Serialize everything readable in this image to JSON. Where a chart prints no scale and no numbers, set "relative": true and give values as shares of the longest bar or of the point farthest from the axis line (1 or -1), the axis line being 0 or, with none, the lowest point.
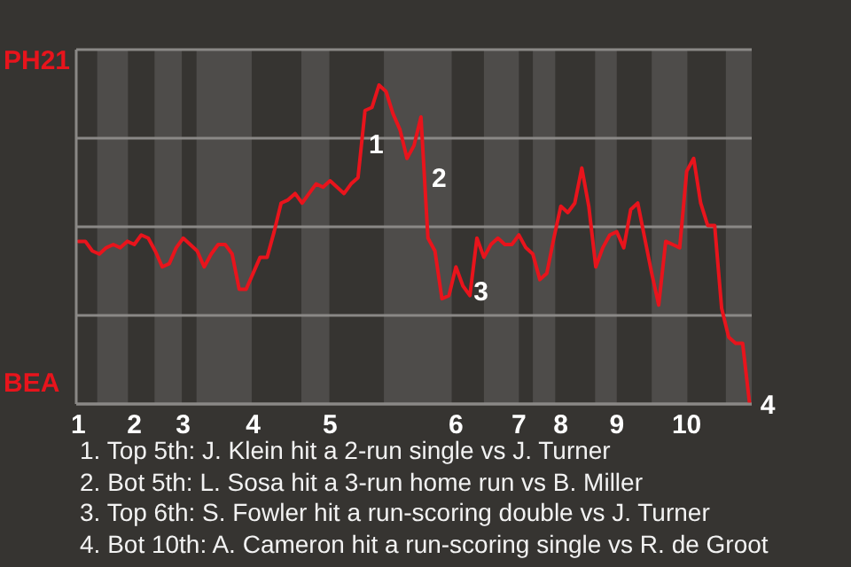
{
  "chart_data": {
    "type": "line",
    "relative": true,
    "categories": [
      "1",
      null,
      null,
      null,
      null,
      null,
      null,
      null,
      "2",
      null,
      null,
      null,
      null,
      null,
      null,
      "3",
      null,
      null,
      null,
      null,
      null,
      null,
      null,
      null,
      null,
      "4",
      null,
      null,
      null,
      null,
      null,
      null,
      null,
      null,
      null,
      null,
      "5",
      null,
      null,
      null,
      null,
      null,
      null,
      null,
      null,
      null,
      null,
      null,
      null,
      null,
      null,
      null,
      null,
      null,
      "6",
      null,
      null,
      null,
      null,
      null,
      null,
      null,
      null,
      "7",
      null,
      null,
      null,
      null,
      null,
      "8",
      null,
      null,
      null,
      null,
      null,
      null,
      null,
      "9",
      null,
      null,
      null,
      null,
      null,
      null,
      null,
      null,
      null,
      "10",
      null,
      null,
      null,
      null,
      null,
      null,
      null,
      null,
      null
    ],
    "series": [
      {
        "color": "#e8141c",
        "values": [
          0.51,
          0.51,
          0.48,
          0.47,
          0.49,
          0.5,
          0.49,
          0.51,
          0.5,
          0.53,
          0.52,
          0.48,
          0.43,
          0.44,
          0.49,
          0.52,
          0.5,
          0.48,
          0.43,
          0.47,
          0.5,
          0.5,
          0.47,
          0.36,
          0.36,
          0.41,
          0.46,
          0.46,
          0.54,
          0.63,
          0.64,
          0.66,
          0.63,
          0.66,
          0.69,
          0.68,
          0.7,
          0.68,
          0.66,
          0.69,
          0.71,
          0.92,
          0.93,
          1,
          0.98,
          0.91,
          0.86,
          0.77,
          0.81,
          0.9,
          0.52,
          0.48,
          0.33,
          0.34,
          0.43,
          0.37,
          0.34,
          0.52,
          0.46,
          0.5,
          0.52,
          0.5,
          0.5,
          0.53,
          0.49,
          0.47,
          0.39,
          0.41,
          0.52,
          0.62,
          0.6,
          0.63,
          0.74,
          0.62,
          0.43,
          0.49,
          0.53,
          0.54,
          0.49,
          0.61,
          0.63,
          0.52,
          0.41,
          0.31,
          0.51,
          0.5,
          0.49,
          0.73,
          0.77,
          0.63,
          0.56,
          0.56,
          0.3,
          0.21,
          0.19,
          0.19,
          0
        ]
      }
    ],
    "grid": "y",
    "annotations": [
      "PH21",
      "BEA",
      "1",
      "2",
      "3",
      "4",
      "1. Top 5th: J. Klein hit a 2-run single vs J. Turner",
      "2. Bot 5th: L. Sosa hit a 3-run home run vs B. Miller",
      "3. Top 6th: S. Fowler hit a run-scoring double vs J. Turner",
      "4. Bot 10th: A. Cameron hit a run-scoring single vs R. de Groot"
    ],
    "legend": false
  }
}
